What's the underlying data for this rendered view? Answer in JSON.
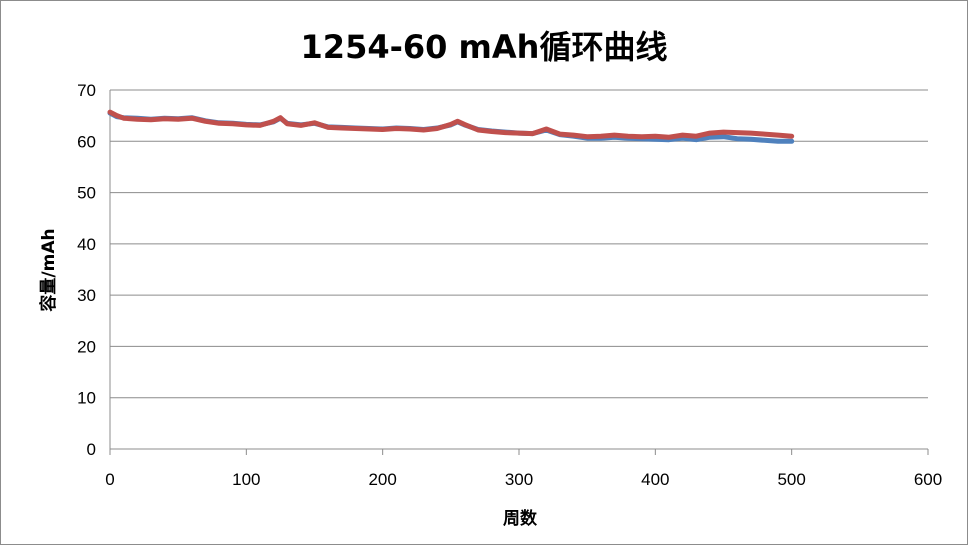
{
  "chart_data": {
    "type": "line",
    "title": "1254-60 mAh循环曲线",
    "xlabel": "周数",
    "ylabel": "容量/mAh",
    "xlim": [
      0,
      600
    ],
    "ylim": [
      0,
      70
    ],
    "x_ticks": [
      0,
      100,
      200,
      300,
      400,
      500,
      600
    ],
    "y_ticks": [
      0,
      10,
      20,
      30,
      40,
      50,
      60,
      70
    ],
    "grid": "horizontal",
    "legend": "none",
    "series": [
      {
        "color": "#4f81bd",
        "x": [
          0,
          5,
          10,
          20,
          30,
          40,
          50,
          60,
          70,
          80,
          90,
          100,
          110,
          120,
          125,
          130,
          140,
          150,
          160,
          170,
          180,
          190,
          200,
          210,
          220,
          230,
          240,
          250,
          255,
          260,
          270,
          280,
          290,
          300,
          310,
          320,
          330,
          340,
          350,
          360,
          370,
          380,
          390,
          400,
          410,
          420,
          430,
          440,
          450,
          460,
          470,
          480,
          490,
          500
        ],
        "values": [
          65.5,
          64.8,
          64.6,
          64.5,
          64.3,
          64.5,
          64.4,
          64.6,
          64.0,
          63.6,
          63.5,
          63.3,
          63.2,
          63.8,
          64.5,
          63.5,
          63.2,
          63.5,
          62.8,
          62.7,
          62.6,
          62.5,
          62.4,
          62.6,
          62.5,
          62.3,
          62.6,
          63.2,
          63.8,
          63.2,
          62.3,
          62.0,
          61.8,
          61.6,
          61.5,
          62.2,
          61.3,
          61.0,
          60.6,
          60.6,
          60.8,
          60.6,
          60.5,
          60.4,
          60.3,
          60.6,
          60.3,
          60.8,
          60.9,
          60.5,
          60.4,
          60.2,
          60.0,
          60.0
        ]
      },
      {
        "color": "#c0504d",
        "x": [
          0,
          5,
          10,
          20,
          30,
          40,
          50,
          60,
          70,
          80,
          90,
          100,
          110,
          120,
          125,
          130,
          140,
          150,
          160,
          170,
          180,
          190,
          200,
          210,
          220,
          230,
          240,
          250,
          255,
          260,
          270,
          280,
          290,
          300,
          310,
          320,
          330,
          340,
          350,
          360,
          370,
          380,
          390,
          400,
          410,
          420,
          430,
          440,
          450,
          460,
          470,
          480,
          490,
          500
        ],
        "values": [
          65.7,
          65.0,
          64.5,
          64.3,
          64.2,
          64.4,
          64.3,
          64.5,
          63.9,
          63.5,
          63.4,
          63.2,
          63.1,
          63.9,
          64.6,
          63.4,
          63.1,
          63.6,
          62.7,
          62.6,
          62.5,
          62.4,
          62.3,
          62.5,
          62.4,
          62.2,
          62.5,
          63.3,
          63.9,
          63.3,
          62.2,
          61.9,
          61.7,
          61.6,
          61.5,
          62.4,
          61.4,
          61.2,
          60.9,
          61.0,
          61.2,
          61.0,
          60.9,
          61.0,
          60.8,
          61.2,
          61.0,
          61.6,
          61.8,
          61.7,
          61.6,
          61.4,
          61.2,
          61.0
        ]
      }
    ]
  }
}
